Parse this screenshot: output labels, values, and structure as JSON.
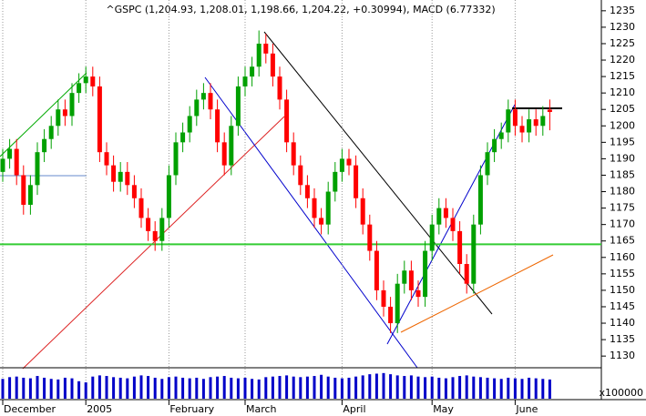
{
  "chart_data": {
    "type": "candlestick",
    "title": "^GSPC (1,204.93, 1,208.01, 1,198.66, 1,204.22, +0.30994), MACD (6.77332)",
    "categories": [
      "December",
      null,
      null,
      null,
      null,
      null,
      null,
      null,
      null,
      null,
      null,
      null,
      "2005",
      null,
      null,
      null,
      null,
      null,
      null,
      null,
      null,
      null,
      null,
      null,
      "February",
      null,
      null,
      null,
      null,
      null,
      null,
      null,
      null,
      null,
      null,
      "March",
      null,
      null,
      null,
      null,
      null,
      null,
      null,
      null,
      null,
      null,
      null,
      null,
      null,
      "April",
      null,
      null,
      null,
      null,
      null,
      null,
      null,
      null,
      null,
      null,
      null,
      null,
      "May",
      null,
      null,
      null,
      null,
      null,
      null,
      null,
      null,
      null,
      null,
      null,
      "June",
      null,
      null,
      null,
      null,
      null
    ],
    "open": [
      1186,
      1190,
      1193,
      1185,
      1176,
      1182,
      1192,
      1196,
      1200,
      1205,
      1203,
      1210,
      1213,
      1215,
      1212,
      1192,
      1188,
      1183,
      1186,
      1182,
      1178,
      1172,
      1168,
      1165,
      1172,
      1185,
      1195,
      1198,
      1203,
      1208,
      1210,
      1205,
      1195,
      1188,
      1200,
      1212,
      1215,
      1218,
      1225,
      1222,
      1215,
      1208,
      1195,
      1188,
      1182,
      1178,
      1172,
      1170,
      1180,
      1186,
      1190,
      1188,
      1178,
      1170,
      1162,
      1150,
      1145,
      1140,
      1152,
      1156,
      1150,
      1148,
      1162,
      1170,
      1175,
      1172,
      1168,
      1158,
      1152,
      1170,
      1185,
      1192,
      1196,
      1198,
      1205,
      1200,
      1198,
      1202,
      1200,
      1204.93
    ],
    "high": [
      1193,
      1196,
      1196,
      1188,
      1185,
      1195,
      1199,
      1203,
      1208,
      1208,
      1213,
      1216,
      1218,
      1218,
      1215,
      1195,
      1191,
      1189,
      1189,
      1185,
      1181,
      1175,
      1171,
      1175,
      1188,
      1198,
      1201,
      1206,
      1211,
      1213,
      1213,
      1208,
      1198,
      1203,
      1215,
      1218,
      1221,
      1229,
      1228,
      1225,
      1218,
      1211,
      1198,
      1191,
      1185,
      1181,
      1175,
      1183,
      1189,
      1193,
      1193,
      1191,
      1181,
      1173,
      1165,
      1153,
      1148,
      1155,
      1159,
      1159,
      1153,
      1165,
      1173,
      1178,
      1178,
      1175,
      1171,
      1161,
      1173,
      1188,
      1195,
      1199,
      1201,
      1208,
      1208,
      1203,
      1205,
      1205,
      1206,
      1208.01
    ],
    "low": [
      1183,
      1187,
      1182,
      1173,
      1173,
      1179,
      1189,
      1193,
      1197,
      1200,
      1200,
      1207,
      1210,
      1209,
      1189,
      1185,
      1180,
      1180,
      1179,
      1175,
      1169,
      1165,
      1162,
      1162,
      1169,
      1182,
      1192,
      1195,
      1200,
      1205,
      1202,
      1192,
      1185,
      1185,
      1197,
      1209,
      1212,
      1215,
      1219,
      1212,
      1205,
      1192,
      1185,
      1179,
      1175,
      1169,
      1167,
      1167,
      1177,
      1183,
      1185,
      1175,
      1167,
      1159,
      1147,
      1142,
      1137,
      1137,
      1149,
      1147,
      1145,
      1145,
      1159,
      1167,
      1169,
      1165,
      1155,
      1149,
      1149,
      1167,
      1182,
      1189,
      1193,
      1195,
      1197,
      1195,
      1195,
      1197,
      1197,
      1198.66
    ],
    "close": [
      1190,
      1193,
      1185,
      1176,
      1182,
      1192,
      1196,
      1200,
      1205,
      1203,
      1210,
      1213,
      1215,
      1212,
      1192,
      1188,
      1183,
      1186,
      1182,
      1178,
      1172,
      1168,
      1165,
      1172,
      1185,
      1195,
      1198,
      1203,
      1208,
      1210,
      1205,
      1195,
      1188,
      1200,
      1212,
      1215,
      1218,
      1225,
      1222,
      1215,
      1208,
      1195,
      1188,
      1182,
      1178,
      1172,
      1170,
      1180,
      1186,
      1190,
      1188,
      1178,
      1170,
      1162,
      1150,
      1145,
      1140,
      1152,
      1156,
      1150,
      1148,
      1162,
      1170,
      1175,
      1172,
      1168,
      1158,
      1152,
      1170,
      1185,
      1192,
      1196,
      1198,
      1205,
      1200,
      1198,
      1202,
      1200,
      1203,
      1204.22
    ],
    "volume": [
      17000,
      18500,
      19000,
      18000,
      17500,
      19500,
      18000,
      17000,
      16500,
      18000,
      17500,
      15000,
      14000,
      19000,
      20000,
      19500,
      18500,
      18000,
      17500,
      19000,
      20000,
      19500,
      18000,
      17000,
      18500,
      19000,
      18000,
      17500,
      18000,
      17000,
      18500,
      19000,
      19500,
      18000,
      17500,
      18000,
      17000,
      16500,
      18500,
      19000,
      19500,
      20000,
      19000,
      18500,
      19000,
      19500,
      20500,
      19000,
      18000,
      17500,
      18000,
      19000,
      20000,
      21000,
      21500,
      22000,
      21000,
      20000,
      19500,
      20000,
      19000,
      18500,
      19000,
      18000,
      17500,
      18500,
      19500,
      20000,
      19000,
      18500,
      18000,
      17500,
      17000,
      18000,
      17500,
      17000,
      18000,
      17500,
      17000,
      16500
    ],
    "up_color": "#00a000",
    "down_color": "#ff0000",
    "volume_color": "#0000c8",
    "ylim": [
      1127,
      1238
    ],
    "yticks": [
      1130,
      1135,
      1140,
      1145,
      1150,
      1155,
      1160,
      1165,
      1170,
      1175,
      1180,
      1185,
      1190,
      1195,
      1200,
      1205,
      1210,
      1215,
      1220,
      1225,
      1230,
      1235
    ],
    "volume_lim": [
      0,
      25000
    ],
    "volume_unit": "x100000",
    "hline": {
      "value": 1164,
      "color": "#33cc33"
    },
    "grid": "x"
  }
}
